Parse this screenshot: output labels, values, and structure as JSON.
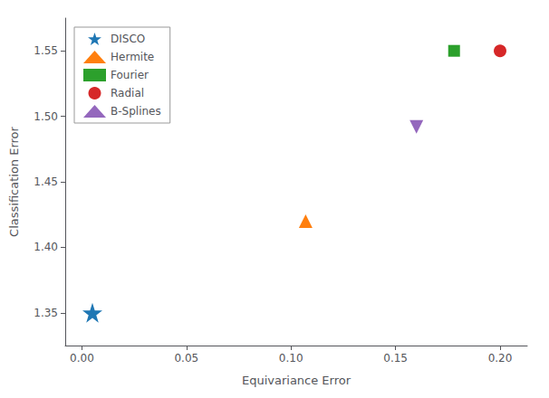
{
  "chart_data": {
    "type": "scatter",
    "xlabel": "Equivariance Error",
    "ylabel": "Classification Error",
    "series": [
      {
        "name": "DISCO",
        "x": [
          0.005
        ],
        "values": [
          1.35
        ],
        "color": "#1f77b4",
        "marker": "star"
      },
      {
        "name": "Hermite",
        "x": [
          0.107
        ],
        "values": [
          1.42
        ],
        "color": "#ff7f0e",
        "marker": "triangle_up"
      },
      {
        "name": "Fourier",
        "x": [
          0.178
        ],
        "values": [
          1.55
        ],
        "color": "#2ca02c",
        "marker": "square"
      },
      {
        "name": "Radial",
        "x": [
          0.2
        ],
        "values": [
          1.55
        ],
        "color": "#d62728",
        "marker": "circle"
      },
      {
        "name": "B-Splines",
        "x": [
          0.16
        ],
        "values": [
          1.492
        ],
        "color": "#9467bd",
        "marker": "triangle_down"
      }
    ],
    "xlim": [
      -0.008,
      0.213
    ],
    "ylim": [
      1.325,
      1.575
    ],
    "xticks": [
      {
        "value": 0.0,
        "label": "0.00"
      },
      0.05,
      {
        "value": 0.1,
        "label": "0.10"
      },
      0.15,
      {
        "value": 0.2,
        "label": "0.20"
      }
    ],
    "yticks": [
      1.35,
      {
        "value": 1.4,
        "label": "1.40"
      },
      1.45,
      {
        "value": 1.5,
        "label": "1.50"
      },
      1.55
    ],
    "grid": false,
    "legend": "upper left"
  }
}
